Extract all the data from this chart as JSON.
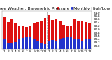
{
  "title": "Milwaukee Weather: Barometric Pressure",
  "subtitle": "Monthly High/Low",
  "months": [
    "1",
    "2",
    "3",
    "4",
    "5",
    "6",
    "7",
    "8",
    "9",
    "10",
    "11",
    "12",
    "1",
    "2",
    "3",
    "4",
    "5",
    "6",
    "7",
    "8",
    "9",
    "10",
    "11",
    "12"
  ],
  "highs": [
    30.72,
    30.42,
    30.58,
    30.38,
    30.22,
    30.18,
    30.15,
    30.18,
    30.35,
    30.42,
    30.52,
    30.68,
    30.85,
    30.55,
    30.62,
    30.45,
    30.28,
    30.22,
    30.18,
    30.62,
    30.48,
    30.52,
    30.42,
    30.35
  ],
  "lows": [
    29.42,
    29.18,
    29.15,
    29.22,
    29.38,
    29.48,
    29.52,
    29.5,
    29.42,
    29.28,
    29.18,
    29.1,
    29.25,
    29.35,
    29.28,
    29.38,
    29.48,
    29.52,
    29.55,
    29.42,
    29.38,
    29.28,
    29.38,
    29.45
  ],
  "high_color": "#dd1111",
  "low_color": "#2233cc",
  "dashed_indices": [
    12
  ],
  "ylim_min": 28.8,
  "ylim_max": 31.1,
  "yticks": [
    29.0,
    29.2,
    29.4,
    29.6,
    29.8,
    30.0,
    30.2,
    30.4,
    30.6,
    30.8,
    31.0
  ],
  "ytick_labels": [
    "29.0",
    "29.2",
    "29.4",
    "29.6",
    "29.8",
    "30.0",
    "30.2",
    "30.4",
    "30.6",
    "30.8",
    "31.0"
  ],
  "bg_color": "#ffffff",
  "title_fontsize": 4.2,
  "tick_fontsize": 3.2,
  "bar_width": 0.72
}
